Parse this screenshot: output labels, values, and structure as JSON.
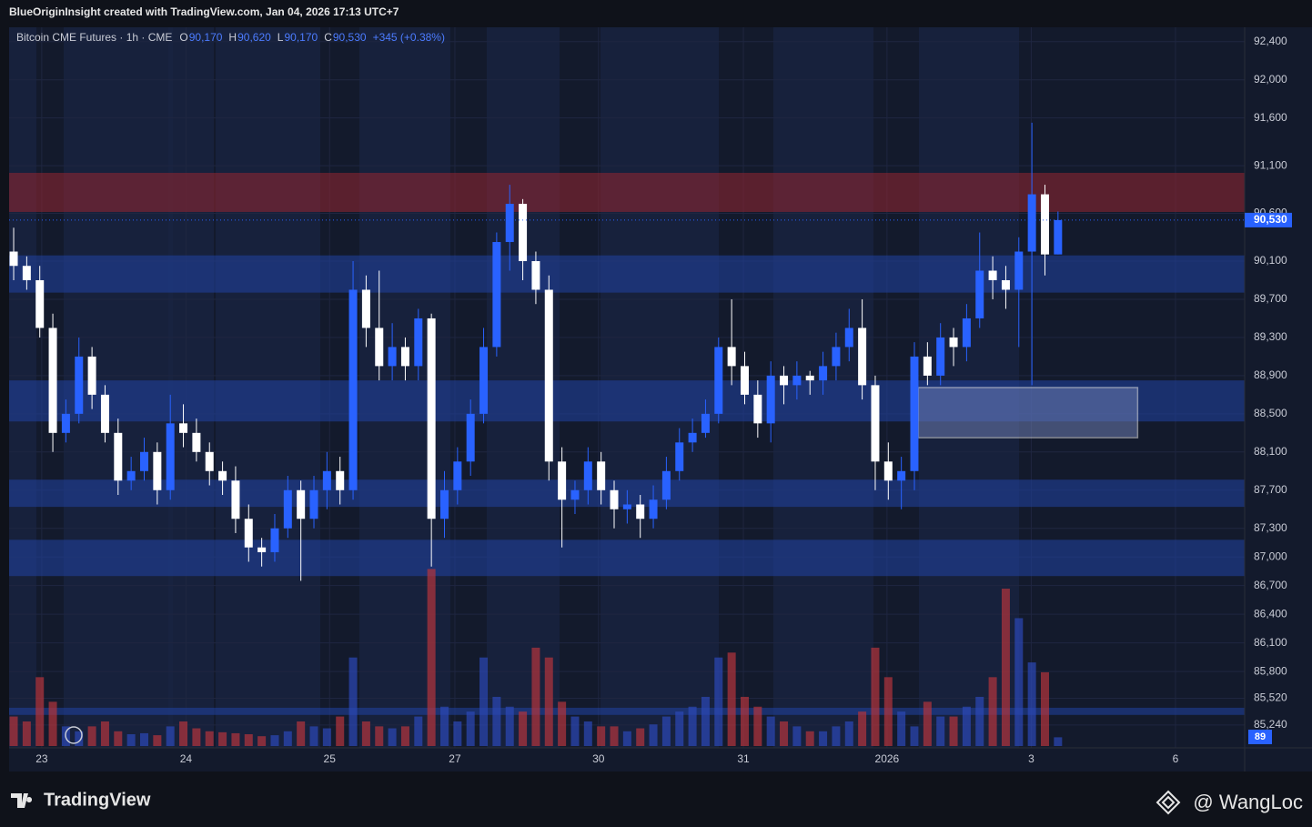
{
  "header": {
    "attribution": "BlueOriginInsight created with TradingView.com, Jan 04, 2026 17:13 UTC+7"
  },
  "footer": {
    "brand": "TradingView",
    "watermark": "@ WangLoc"
  },
  "chart_data": {
    "type": "candlestick",
    "title": "Bitcoin CME Futures · 1h · CME",
    "ohlc_legend": [
      {
        "key": "O",
        "value": "90,170"
      },
      {
        "key": "H",
        "value": "90,620"
      },
      {
        "key": "L",
        "value": "90,170"
      },
      {
        "key": "C",
        "value": "90,530"
      }
    ],
    "change": "+345 (+0.38%)",
    "up_color": "#2962ff",
    "down_color": "#ffffff",
    "x": [
      0,
      1,
      2,
      3,
      4,
      5,
      6,
      7,
      8,
      9,
      10,
      11,
      12,
      13,
      14,
      15,
      16,
      17,
      18,
      19,
      20,
      21,
      22,
      23,
      24,
      25,
      26,
      27,
      28,
      29,
      30,
      31,
      32,
      33,
      34,
      35,
      36,
      37,
      38,
      39,
      40,
      41,
      42,
      43,
      44,
      45,
      46,
      47,
      48,
      49,
      50,
      51,
      52,
      53,
      54,
      55,
      56,
      57,
      58,
      59,
      60,
      61,
      62,
      63,
      64,
      65,
      66,
      67,
      68,
      69,
      70,
      71,
      72,
      73,
      74,
      75,
      76,
      77,
      78,
      79,
      80
    ],
    "open": [
      90200,
      90050,
      89900,
      89400,
      88300,
      88500,
      89100,
      88700,
      88300,
      87800,
      87900,
      88100,
      87700,
      88400,
      88300,
      88100,
      87900,
      87800,
      87400,
      87100,
      87050,
      87300,
      87700,
      87400,
      87700,
      87900,
      87700,
      89800,
      89400,
      89000,
      89200,
      89000,
      89500,
      87400,
      87700,
      88000,
      88500,
      89200,
      90300,
      90700,
      90100,
      89800,
      88000,
      87600,
      87700,
      88000,
      87700,
      87500,
      87550,
      87400,
      87600,
      87900,
      88200,
      88300,
      88500,
      89200,
      89000,
      88700,
      88400,
      88900,
      88800,
      88900,
      88850,
      89000,
      89200,
      89400,
      88800,
      88000,
      87800,
      87900,
      89100,
      88900,
      89300,
      89200,
      89500,
      90000,
      89900,
      89800,
      90200,
      90800,
      90170
    ],
    "high": [
      90450,
      90150,
      90050,
      89550,
      88650,
      89300,
      89200,
      88800,
      88450,
      88050,
      88250,
      88200,
      88700,
      88600,
      88450,
      88200,
      88000,
      87950,
      87550,
      87200,
      87450,
      87850,
      87800,
      87850,
      88100,
      88050,
      90100,
      89950,
      90000,
      89450,
      89300,
      89600,
      89550,
      87900,
      88150,
      88650,
      89400,
      90400,
      90900,
      90750,
      90200,
      89950,
      88150,
      87800,
      88150,
      88100,
      87800,
      87700,
      87650,
      87750,
      88050,
      88350,
      88450,
      88650,
      89300,
      89700,
      89150,
      88850,
      89050,
      89000,
      89050,
      88950,
      89150,
      89350,
      89600,
      89700,
      88900,
      88200,
      88050,
      89250,
      89250,
      89450,
      89400,
      89650,
      90400,
      90150,
      90050,
      90350,
      91550,
      90900,
      90620
    ],
    "low": [
      89900,
      89800,
      89300,
      88100,
      88200,
      88400,
      88550,
      88200,
      87650,
      87700,
      87800,
      87550,
      87600,
      88150,
      88000,
      87750,
      87650,
      87250,
      86950,
      86900,
      86950,
      87200,
      86750,
      87300,
      87500,
      87550,
      87600,
      89200,
      88850,
      88850,
      88850,
      88850,
      86900,
      87200,
      87550,
      87850,
      88400,
      89100,
      90000,
      89900,
      89650,
      87800,
      87100,
      87450,
      87550,
      87550,
      87300,
      87350,
      87200,
      87300,
      87500,
      87800,
      88100,
      88250,
      88400,
      88800,
      88600,
      88250,
      88200,
      88600,
      88650,
      88700,
      88700,
      88850,
      89050,
      88650,
      87700,
      87600,
      87500,
      87700,
      88800,
      88800,
      89000,
      89050,
      89400,
      89700,
      89600,
      89200,
      88800,
      89950,
      90170
    ],
    "close": [
      90050,
      89900,
      89400,
      88300,
      88500,
      89100,
      88700,
      88300,
      87800,
      87900,
      88100,
      87700,
      88400,
      88300,
      88100,
      87900,
      87800,
      87400,
      87100,
      87050,
      87300,
      87700,
      87400,
      87700,
      87900,
      87700,
      89800,
      89400,
      89000,
      89200,
      89000,
      89500,
      87400,
      87700,
      88000,
      88500,
      89200,
      90300,
      90700,
      90100,
      89800,
      88000,
      87600,
      87700,
      88000,
      87700,
      87500,
      87550,
      87400,
      87600,
      87900,
      88200,
      88300,
      88500,
      89200,
      89000,
      88700,
      88400,
      88900,
      88800,
      88900,
      88850,
      89000,
      89200,
      89400,
      88800,
      88000,
      87800,
      87900,
      89100,
      88900,
      89300,
      89200,
      89500,
      90000,
      89900,
      89800,
      90200,
      90800,
      90170,
      90530
    ],
    "volume": [
      300,
      250,
      700,
      450,
      200,
      150,
      200,
      250,
      150,
      120,
      130,
      110,
      200,
      250,
      180,
      150,
      140,
      130,
      120,
      100,
      110,
      150,
      250,
      200,
      180,
      300,
      900,
      250,
      200,
      180,
      200,
      300,
      1800,
      400,
      250,
      350,
      900,
      500,
      400,
      350,
      1000,
      900,
      450,
      300,
      250,
      200,
      200,
      150,
      180,
      220,
      300,
      350,
      400,
      500,
      900,
      950,
      500,
      400,
      300,
      250,
      200,
      150,
      150,
      200,
      250,
      350,
      1000,
      700,
      350,
      200,
      450,
      300,
      300,
      400,
      500,
      700,
      1600,
      1300,
      850,
      750,
      89
    ],
    "volume_ylim": [
      0,
      1850
    ],
    "xlim": [
      -0.35,
      94.3
    ],
    "xticks": [
      {
        "value": 2.15,
        "label": "23"
      },
      {
        "value": 13.2,
        "label": "24"
      },
      {
        "value": 24.2,
        "label": "25"
      },
      {
        "value": 33.8,
        "label": "27"
      },
      {
        "value": 44.8,
        "label": "30"
      },
      {
        "value": 55.9,
        "label": "31"
      },
      {
        "value": 66.9,
        "label": "2026"
      },
      {
        "value": 77.95,
        "label": "3"
      },
      {
        "value": 89.0,
        "label": "6"
      }
    ],
    "ylim": [
      85000,
      92550
    ],
    "yticks": [
      {
        "value": 92400,
        "label": "92,400"
      },
      {
        "value": 92000,
        "label": "92,000"
      },
      {
        "value": 91600,
        "label": "91,600"
      },
      {
        "value": 91100,
        "label": "91,100"
      },
      {
        "value": 90600,
        "label": "90,600"
      },
      {
        "value": 90100,
        "label": "90,100"
      },
      {
        "value": 89700,
        "label": "89,700"
      },
      {
        "value": 89300,
        "label": "89,300"
      },
      {
        "value": 88900,
        "label": "88,900"
      },
      {
        "value": 88500,
        "label": "88,500"
      },
      {
        "value": 88100,
        "label": "88,100"
      },
      {
        "value": 87700,
        "label": "87,700"
      },
      {
        "value": 87300,
        "label": "87,300"
      },
      {
        "value": 87000,
        "label": "87,000"
      },
      {
        "value": 86700,
        "label": "86,700"
      },
      {
        "value": 86400,
        "label": "86,400"
      },
      {
        "value": 86100,
        "label": "86,100"
      },
      {
        "value": 85800,
        "label": "85,800"
      },
      {
        "value": 85520,
        "label": "85,520"
      },
      {
        "value": 85240,
        "label": "85,240"
      }
    ],
    "last_price": {
      "value": 90530,
      "label": "90,530"
    },
    "zones": [
      {
        "top": 91025,
        "bottom": 90615,
        "color": "#8a2430"
      },
      {
        "top": 90160,
        "bottom": 89770,
        "color": "#1f3f9a"
      },
      {
        "top": 88850,
        "bottom": 88420,
        "color": "#1f3f9a"
      },
      {
        "top": 87810,
        "bottom": 87525,
        "color": "#1f3f9a"
      },
      {
        "top": 87180,
        "bottom": 86800,
        "color": "#1f3f9a"
      },
      {
        "top": 85420,
        "bottom": 85345,
        "color": "#1f3f9a"
      }
    ],
    "box": {
      "x": [
        69.3,
        86.1
      ],
      "top": 88775,
      "bottom": 88250
    },
    "grid": true
  }
}
